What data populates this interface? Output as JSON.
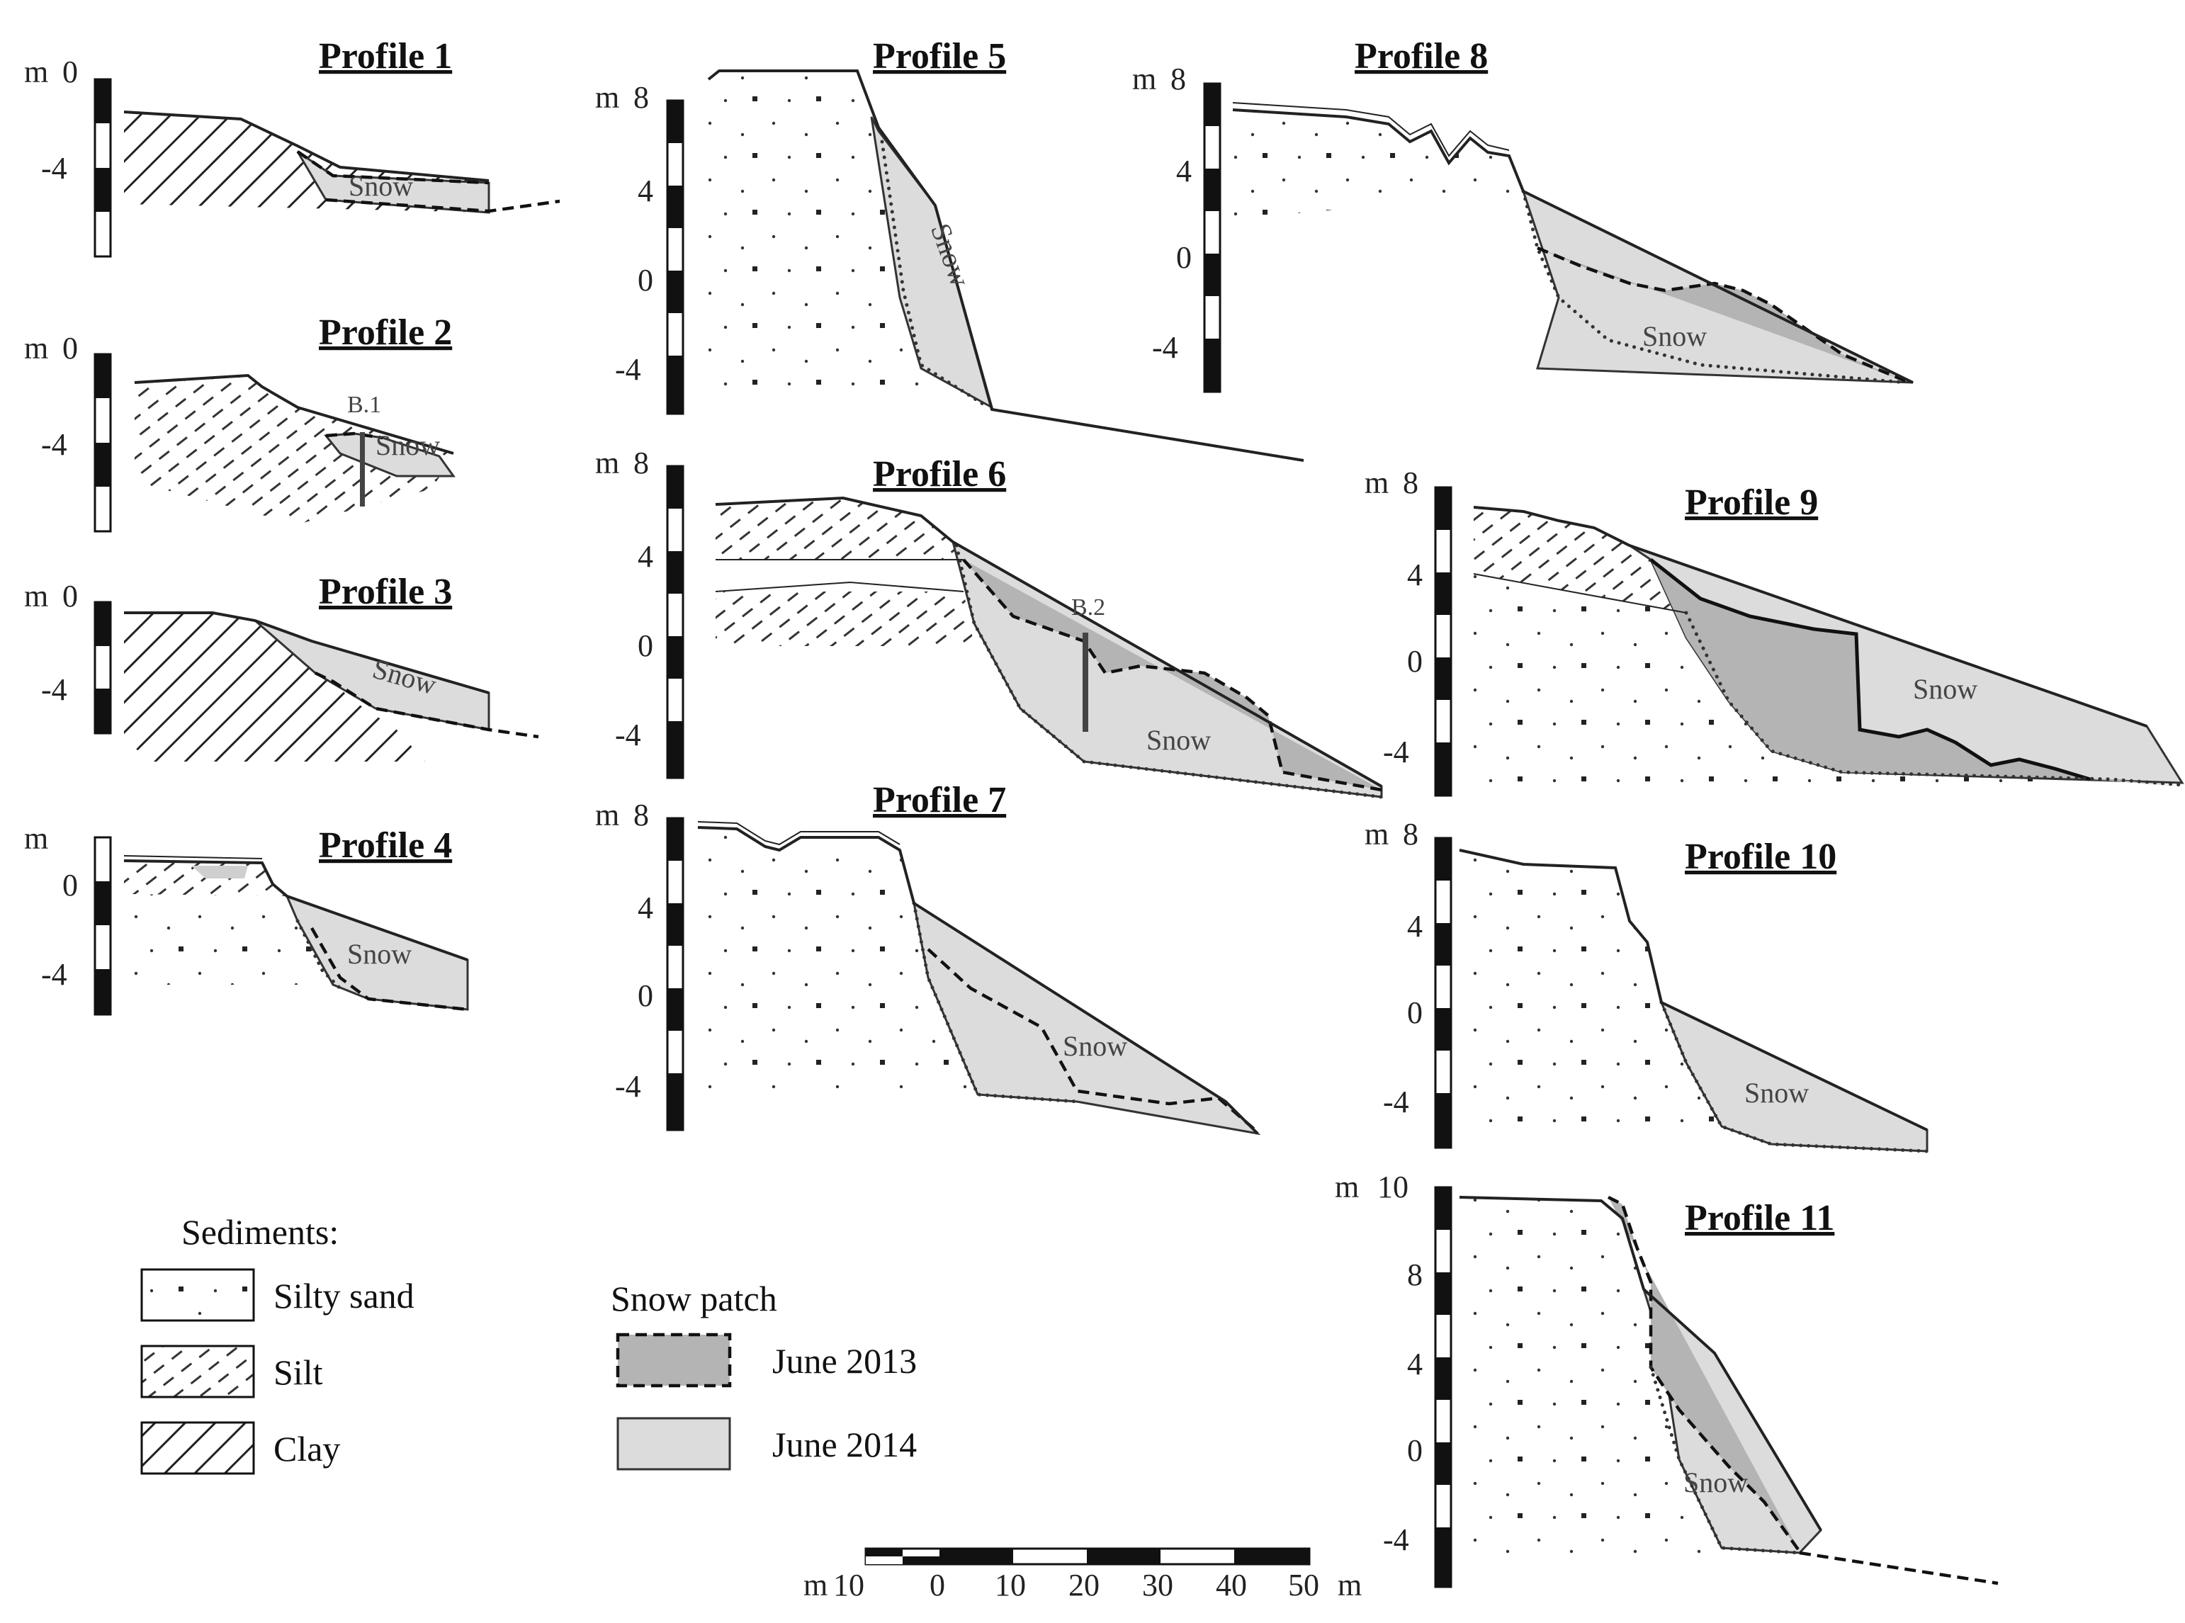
{
  "profiles": [
    {
      "title": "Profile 1",
      "unit": "m",
      "ticks": [
        "0",
        "-4"
      ],
      "snow_label": "Snow"
    },
    {
      "title": "Profile 2",
      "unit": "m",
      "ticks": [
        "0",
        "-4"
      ],
      "snow_label": "Snow",
      "borehole": "B.1"
    },
    {
      "title": "Profile 3",
      "unit": "m",
      "ticks": [
        "0",
        "-4"
      ],
      "snow_label": "Snow"
    },
    {
      "title": "Profile 4",
      "unit": "m",
      "ticks": [
        "0",
        "-4"
      ],
      "snow_label": "Snow"
    },
    {
      "title": "Profile 5",
      "unit": "m",
      "ticks": [
        "8",
        "4",
        "0",
        "-4"
      ],
      "snow_label": "Snow"
    },
    {
      "title": "Profile 6",
      "unit": "m",
      "ticks": [
        "8",
        "4",
        "0",
        "-4"
      ],
      "snow_label": "Snow",
      "borehole": "B.2"
    },
    {
      "title": "Profile 7",
      "unit": "m",
      "ticks": [
        "8",
        "4",
        "0",
        "-4"
      ],
      "snow_label": "Snow"
    },
    {
      "title": "Profile 8",
      "unit": "m",
      "ticks": [
        "8",
        "4",
        "0",
        "-4"
      ],
      "snow_label": "Snow"
    },
    {
      "title": "Profile 9",
      "unit": "m",
      "ticks": [
        "8",
        "4",
        "0",
        "-4"
      ],
      "snow_label": "Snow"
    },
    {
      "title": "Profile 10",
      "unit": "m",
      "ticks": [
        "8",
        "4",
        "0",
        "-4"
      ],
      "snow_label": "Snow"
    },
    {
      "title": "Profile 11",
      "unit": "m",
      "ticks": [
        "10",
        "8",
        "4",
        "0",
        "-4"
      ],
      "snow_label": "Snow"
    }
  ],
  "legend": {
    "sediments_title": "Sediments:",
    "sediments": [
      "Silty sand",
      "Silt",
      "Clay"
    ],
    "snow_title": "Snow patch",
    "snow": [
      "June 2013",
      "June 2014"
    ]
  },
  "scale_bar": {
    "unit_left": "m",
    "unit_right": "m",
    "labels": [
      "10",
      "0",
      "10",
      "20",
      "30",
      "40",
      "50"
    ]
  },
  "colors": {
    "snow_2013": "#b4b4b4",
    "snow_2014": "#dcdcdc",
    "ground_line": "#222222"
  }
}
